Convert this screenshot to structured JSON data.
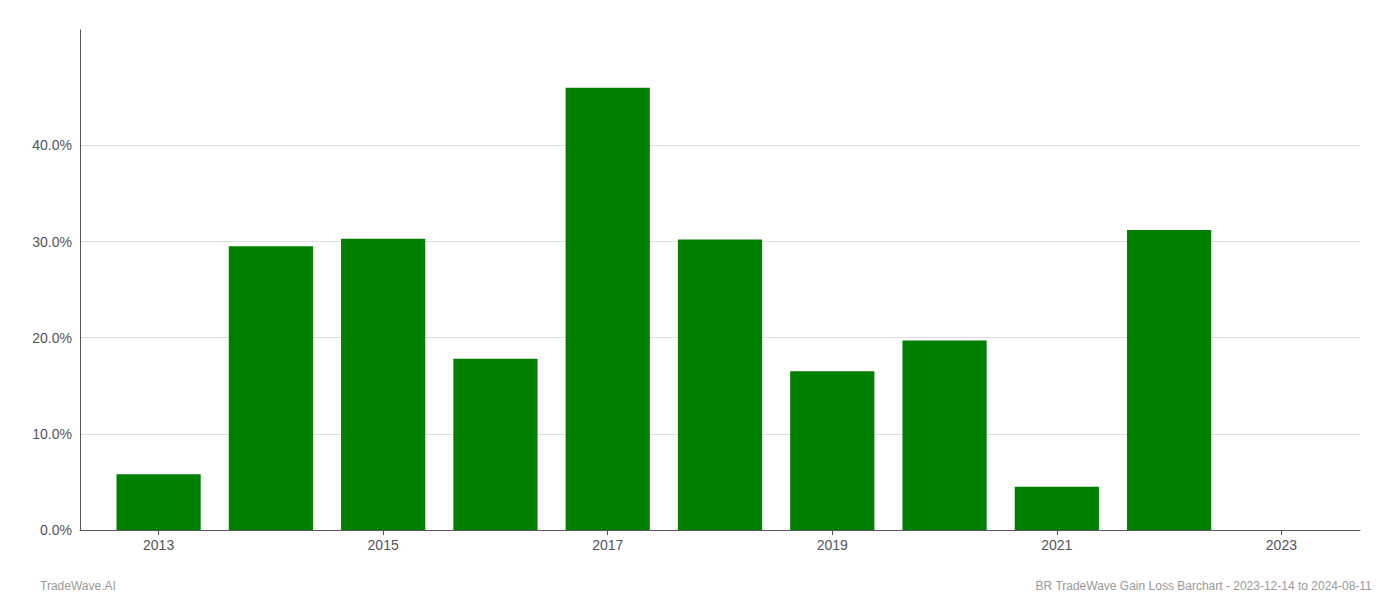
{
  "chart_data": {
    "type": "bar",
    "x": [
      2013,
      2014,
      2015,
      2016,
      2017,
      2018,
      2019,
      2020,
      2021,
      2022,
      2023
    ],
    "values": [
      0.058,
      0.295,
      0.303,
      0.178,
      0.46,
      0.302,
      0.165,
      0.197,
      0.045,
      0.312,
      null
    ],
    "color": "#008000",
    "xlim": [
      2012.3,
      2023.7
    ],
    "xticks": [
      2013,
      2015,
      2017,
      2019,
      2021,
      2023
    ],
    "ylim": [
      0,
      0.52
    ],
    "yticks": [
      {
        "value": 0.0,
        "label": "0.0%"
      },
      {
        "value": 0.1,
        "label": "10.0%"
      },
      {
        "value": 0.2,
        "label": "20.0%"
      },
      {
        "value": 0.3,
        "label": "30.0%"
      },
      {
        "value": 0.4,
        "label": "40.0%"
      }
    ],
    "grid": true,
    "annotations": [
      "TradeWave.AI",
      "BR TradeWave Gain Loss Barchart - 2023-12-14 to 2024-08-11"
    ]
  }
}
